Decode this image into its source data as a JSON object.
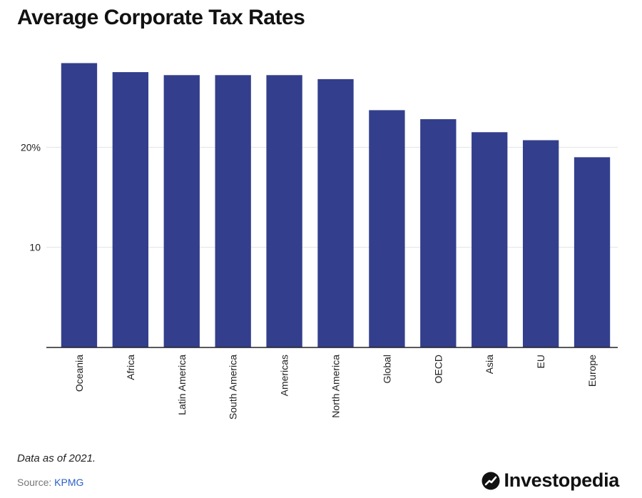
{
  "title": "Average Corporate Tax Rates",
  "note": "Data as of 2021.",
  "source": {
    "label": "Source:",
    "link_text": "KPMG"
  },
  "brand": {
    "name": "Investopedia",
    "icon": "investopedia-logo-icon"
  },
  "colors": {
    "bar": "#333f8c",
    "axis": "#222222",
    "grid": "#e3e3e3",
    "text": "#222222",
    "link": "#2b5fc9"
  },
  "chart_data": {
    "type": "bar",
    "categories": [
      "Oceania",
      "Africa",
      "Latin America",
      "South America",
      "Americas",
      "North America",
      "Global",
      "OECD",
      "Asia",
      "EU",
      "Europe"
    ],
    "values": [
      28.4,
      27.5,
      27.2,
      27.2,
      27.2,
      26.8,
      23.7,
      22.8,
      21.5,
      20.7,
      19.0
    ],
    "ylim": [
      0,
      30
    ],
    "yticks": [
      {
        "value": 10,
        "label": "10"
      },
      {
        "value": 20,
        "label": "20%"
      }
    ],
    "grid": true,
    "xlabel": "",
    "ylabel": ""
  }
}
